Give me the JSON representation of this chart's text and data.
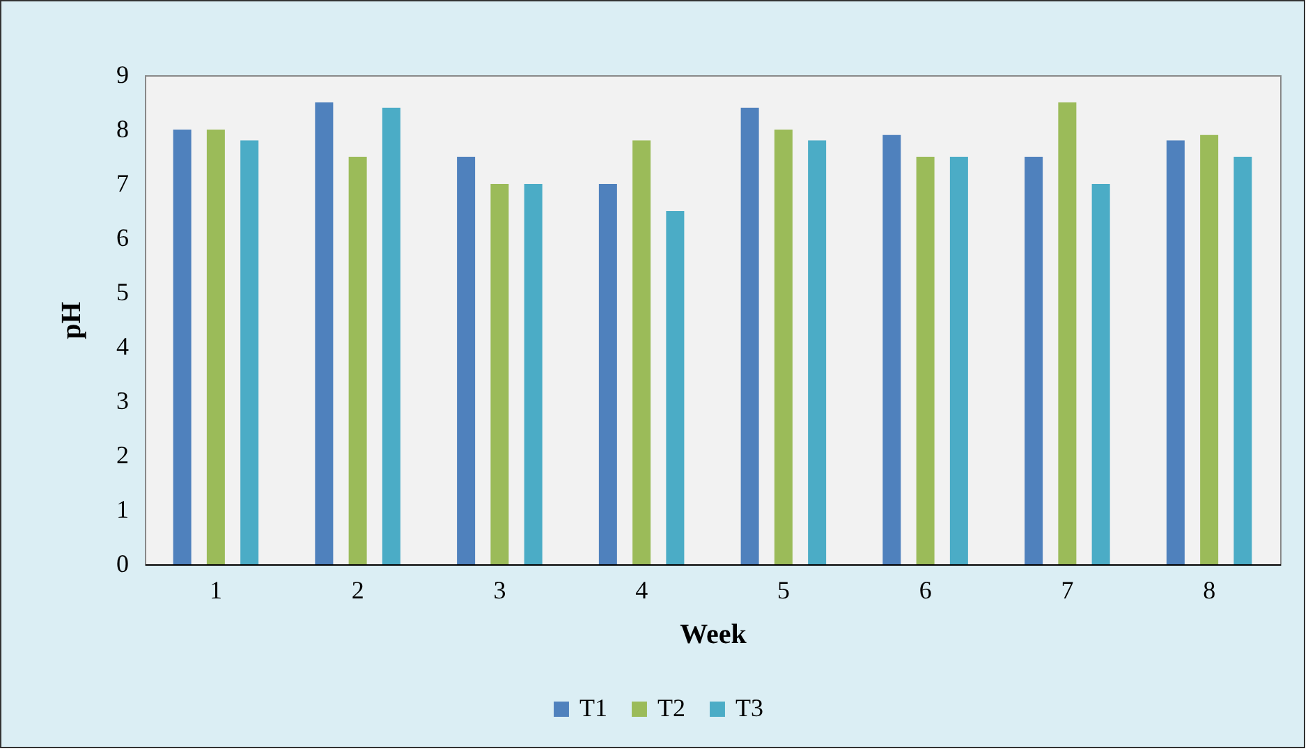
{
  "chart_data": {
    "type": "bar",
    "xlabel": "Week",
    "ylabel": "pH",
    "categories": [
      "1",
      "2",
      "3",
      "4",
      "5",
      "6",
      "7",
      "8"
    ],
    "series": [
      {
        "name": "T1",
        "color": "#4f81bd",
        "values": [
          8.0,
          8.5,
          7.5,
          7.0,
          8.4,
          7.9,
          7.5,
          7.8
        ]
      },
      {
        "name": "T2",
        "color": "#9bbb59",
        "values": [
          8.0,
          7.5,
          7.0,
          7.8,
          8.0,
          7.5,
          8.5,
          7.9
        ]
      },
      {
        "name": "T3",
        "color": "#4bacc6",
        "values": [
          7.8,
          8.4,
          7.0,
          6.5,
          7.8,
          7.5,
          7.0,
          7.5
        ]
      }
    ],
    "ylim": [
      0,
      9
    ],
    "yticks": [
      0,
      1,
      2,
      3,
      4,
      5,
      6,
      7,
      8,
      9
    ],
    "grid": false,
    "legend": "bottom"
  }
}
